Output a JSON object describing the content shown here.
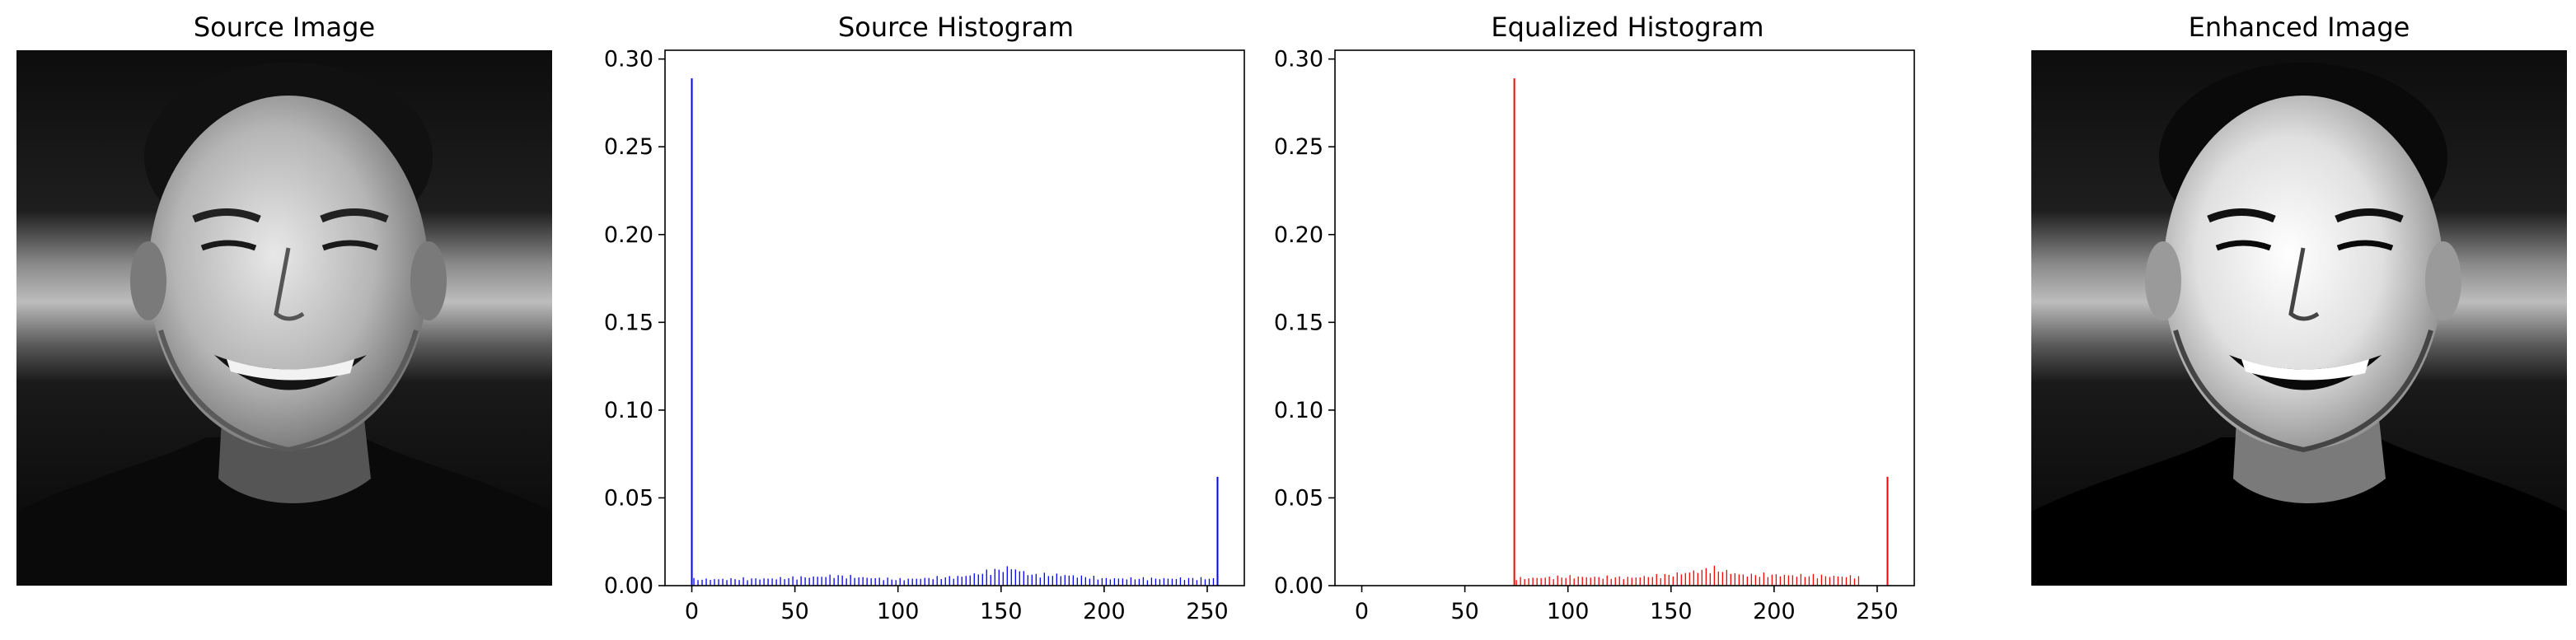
{
  "figure": {
    "panels": [
      {
        "id": "source-image",
        "title": "Source Image",
        "kind": "image"
      },
      {
        "id": "source-histogram",
        "title": "Source Histogram",
        "kind": "chart",
        "chart_index": 0
      },
      {
        "id": "equalized-histogram",
        "title": "Equalized Histogram",
        "kind": "chart",
        "chart_index": 1
      },
      {
        "id": "enhanced-image",
        "title": "Enhanced Image",
        "kind": "image"
      }
    ]
  },
  "chart_data": [
    {
      "type": "bar",
      "title": "Source Histogram",
      "xlabel": "",
      "ylabel": "",
      "color": "#0000ff",
      "xlim": [
        -13,
        268
      ],
      "ylim": [
        0,
        0.305
      ],
      "xticks": [
        0,
        50,
        100,
        150,
        200,
        250
      ],
      "yticks": [
        0.0,
        0.05,
        0.1,
        0.15,
        0.2,
        0.25,
        0.3
      ],
      "ytick_labels": [
        "0.00",
        "0.05",
        "0.10",
        "0.15",
        "0.20",
        "0.25",
        "0.30"
      ],
      "spikes": [
        {
          "x": 0,
          "y": 0.289
        },
        {
          "x": 255,
          "y": 0.062
        }
      ],
      "bulk": {
        "x_start": 1,
        "x_end": 254,
        "x_step": 2,
        "profile": [
          [
            1,
            0.0035
          ],
          [
            40,
            0.004
          ],
          [
            70,
            0.0055
          ],
          [
            100,
            0.0035
          ],
          [
            130,
            0.005
          ],
          [
            150,
            0.009
          ],
          [
            155,
            0.01
          ],
          [
            165,
            0.006
          ],
          [
            180,
            0.006
          ],
          [
            200,
            0.004
          ],
          [
            254,
            0.004
          ]
        ]
      },
      "grid": false,
      "legend": "none"
    },
    {
      "type": "bar",
      "title": "Equalized Histogram",
      "xlabel": "",
      "ylabel": "",
      "color": "#ff0000",
      "xlim": [
        -13,
        268
      ],
      "ylim": [
        0,
        0.305
      ],
      "xticks": [
        0,
        50,
        100,
        150,
        200,
        250
      ],
      "yticks": [
        0.0,
        0.05,
        0.1,
        0.15,
        0.2,
        0.25,
        0.3
      ],
      "ytick_labels": [
        "0.00",
        "0.05",
        "0.10",
        "0.15",
        "0.20",
        "0.25",
        "0.30"
      ],
      "spikes": [
        {
          "x": 74,
          "y": 0.289
        },
        {
          "x": 255,
          "y": 0.062
        }
      ],
      "bulk": {
        "x_start": 75,
        "x_end": 241,
        "x_step": 2,
        "profile": [
          [
            75,
            0.004
          ],
          [
            100,
            0.005
          ],
          [
            130,
            0.0045
          ],
          [
            150,
            0.006
          ],
          [
            170,
            0.0095
          ],
          [
            185,
            0.006
          ],
          [
            200,
            0.006
          ],
          [
            241,
            0.005
          ]
        ]
      },
      "grid": false,
      "legend": "none"
    }
  ]
}
